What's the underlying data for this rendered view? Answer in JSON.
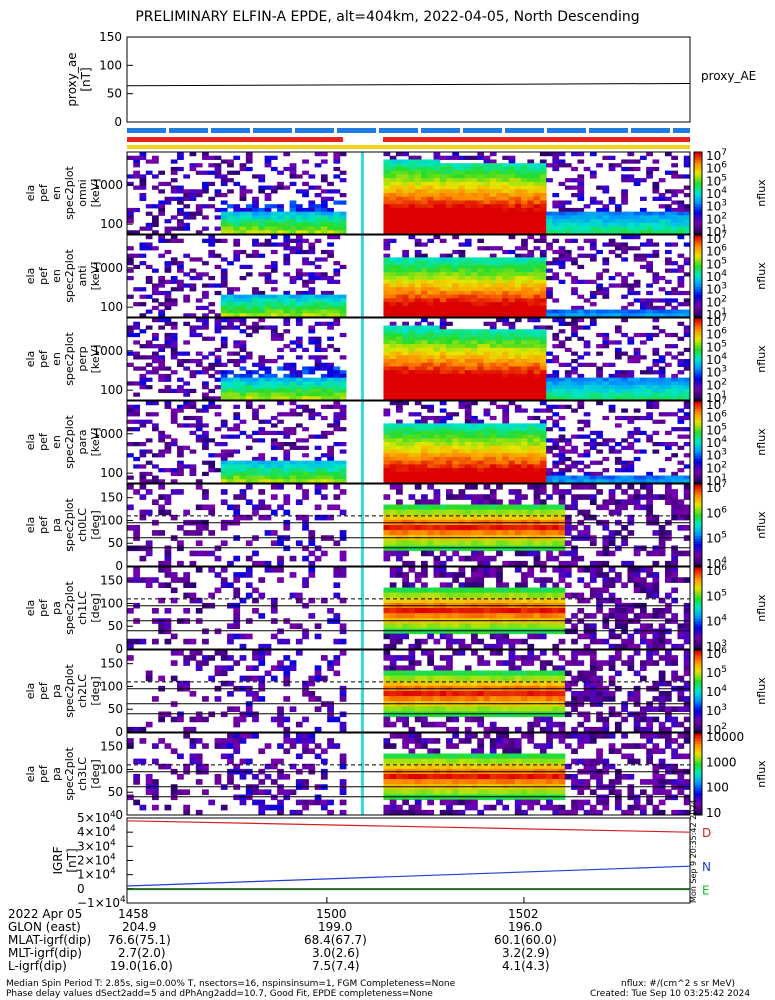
{
  "title": "PRELIMINARY ELFIN-A EPDE, alt=404km, 2022-04-05, North Descending",
  "colors": {
    "red_bar": "#e8231b",
    "blue_bar": "#1f7be0",
    "yellow_bar": "#f2d21a",
    "b_d": "#d42020",
    "b_n": "#2040d0",
    "b_e": "#10c010"
  },
  "chart_data": [
    {
      "type": "line",
      "name": "proxy_ae",
      "ylabel": "proxy_ae\n[nT]",
      "yticks": [
        "150",
        "100",
        "50",
        "0"
      ],
      "ylim": [
        0,
        150
      ],
      "series": [
        {
          "name": "proxy_AE",
          "values": [
            64,
            68
          ]
        }
      ]
    },
    {
      "type": "heatmap",
      "panels": [
        {
          "id": "omni",
          "ylabel": "ela\npef\nen\nspec2plot\nomni\n[keV]",
          "yticks": [
            "1000",
            "100"
          ],
          "cbar_ticks": [
            "10^7",
            "10^6",
            "10^5",
            "10^4",
            "10^3",
            "10^2",
            "10^1"
          ],
          "cbar_label": "nflux"
        },
        {
          "id": "anti",
          "ylabel": "ela\npef\nen\nspec2plot\nanti\n[keV]",
          "yticks": [
            "1000",
            "100"
          ],
          "cbar_ticks": [
            "10^7",
            "10^6",
            "10^5",
            "10^4",
            "10^3",
            "10^2",
            "10^1"
          ],
          "cbar_label": "nflux"
        },
        {
          "id": "perp",
          "ylabel": "ela\npef\nen\nspec2plot\nperp\n[keV]",
          "yticks": [
            "1000",
            "100"
          ],
          "cbar_ticks": [
            "10^7",
            "10^6",
            "10^5",
            "10^4",
            "10^3",
            "10^2",
            "10^1"
          ],
          "cbar_label": "nflux"
        },
        {
          "id": "para",
          "ylabel": "ela\npef\nen\nspec2plot\npara\n[keV]",
          "yticks": [
            "1000",
            "100"
          ],
          "cbar_ticks": [
            "10^7",
            "10^6",
            "10^5",
            "10^4",
            "10^3",
            "10^2",
            "10^1"
          ],
          "cbar_label": "nflux"
        },
        {
          "id": "ch0LC",
          "ylabel": "ela\npef\npa\nspec2plot\nch0LC\n[deg]",
          "yticks": [
            "150",
            "100",
            "50",
            "0"
          ],
          "cbar_ticks": [
            "10^7",
            "10^6",
            "10^5",
            "10^4"
          ],
          "cbar_label": "nflux"
        },
        {
          "id": "ch1LC",
          "ylabel": "ela\npef\npa\nspec2plot\nch1LC\n[deg]",
          "yticks": [
            "150",
            "100",
            "50",
            "0"
          ],
          "cbar_ticks": [
            "10^6",
            "10^5",
            "10^4",
            "10^3"
          ],
          "cbar_label": "nflux"
        },
        {
          "id": "ch2LC",
          "ylabel": "ela\npef\npa\nspec2plot\nch2LC\n[deg]",
          "yticks": [
            "150",
            "100",
            "50",
            "0"
          ],
          "cbar_ticks": [
            "10^6",
            "10^5",
            "10^4",
            "10^3",
            "10^2"
          ],
          "cbar_label": "nflux"
        },
        {
          "id": "ch3LC",
          "ylabel": "ela\npef\npa\nspec2plot\nch3LC\n[deg]",
          "yticks": [
            "150",
            "100",
            "50",
            "0"
          ],
          "cbar_ticks": [
            "10000",
            "1000",
            "100",
            "10"
          ],
          "cbar_label": "nflux"
        }
      ]
    },
    {
      "type": "line",
      "name": "igrf",
      "ylabel": "IGRF\n[nT]",
      "yticks": [
        "5×10^4",
        "4×10^4",
        "3×10^4",
        "2×10^4",
        "1×10^4",
        "0",
        "−1×10^4"
      ],
      "ylim": [
        -10000,
        50000
      ],
      "series": [
        {
          "name": "D",
          "values": [
            48000,
            40000
          ]
        },
        {
          "name": "N",
          "values": [
            2000,
            16000
          ]
        },
        {
          "name": "E",
          "values": [
            -500,
            -500
          ]
        }
      ]
    }
  ],
  "time_axis": {
    "date_label": "2022 Apr 05",
    "ticks": [
      "1458",
      "1500",
      "1502"
    ]
  },
  "ephemeris": [
    {
      "label": "GLON (east)",
      "values": [
        "204.9",
        "199.0",
        "196.0"
      ]
    },
    {
      "label": "MLAT-igrf(dip)",
      "values": [
        "76.6(75.1)",
        "68.4(67.7)",
        "60.1(60.0)"
      ]
    },
    {
      "label": "MLT-igrf(dip)",
      "values": [
        "2.7(2.0)",
        "3.0(2.6)",
        "3.2(2.9)"
      ]
    },
    {
      "label": "L-igrf(dip)",
      "values": [
        "19.0(16.0)",
        "7.5(7.4)",
        "4.1(4.3)"
      ]
    }
  ],
  "stamp": "Mon Sep 9 20:35:42 2024",
  "footer": {
    "line1": "Median Spin Period T: 2.85s, sig=0.00% T, nsectors=16, nspinsinsum=1, FGM Completeness=None",
    "line2": "Phase delay values dSect2add=5 and dPhAng2add=10.7, Good Fit, EPDE completeness=None",
    "right1": "nflux: #/(cm^2 s sr MeV)",
    "right2": "Created: Tue Sep 10 03:25:42 2024"
  }
}
